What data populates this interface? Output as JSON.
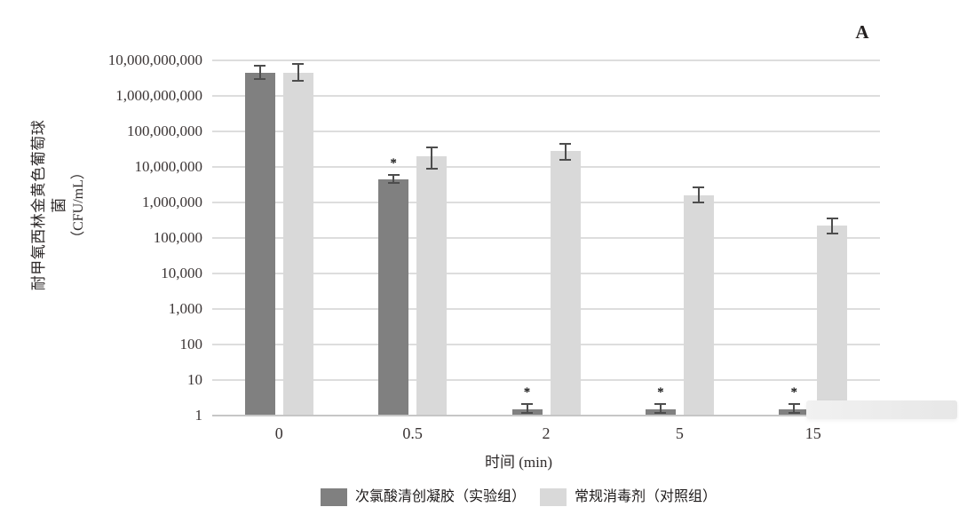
{
  "panel_label": "A",
  "chart_data": {
    "type": "bar",
    "title": "",
    "xlabel": "时间 (min)",
    "ylabel_line1": "耐甲氧西林金黄色葡萄球菌",
    "ylabel_line2": "（CFU/mL）",
    "y_scale": "log10",
    "ylim": [
      1,
      10000000000
    ],
    "grid": true,
    "legend_position": "bottom",
    "y_ticks": [
      {
        "label": "10,000,000,000",
        "value": 10000000000
      },
      {
        "label": "1,000,000,000",
        "value": 1000000000
      },
      {
        "label": "100,000,000",
        "value": 100000000
      },
      {
        "label": "10,000,000",
        "value": 10000000
      },
      {
        "label": "1,000,000",
        "value": 1000000
      },
      {
        "label": "100,000",
        "value": 100000
      },
      {
        "label": "10,000",
        "value": 10000
      },
      {
        "label": "1,000",
        "value": 1000
      },
      {
        "label": "100",
        "value": 100
      },
      {
        "label": "10",
        "value": 10
      },
      {
        "label": "1",
        "value": 1
      }
    ],
    "categories": [
      "0",
      "0.5",
      "2",
      "5",
      "15"
    ],
    "series": [
      {
        "name": "次氯酸清创凝胶（实验组）",
        "key": "experimental",
        "color": "#808080",
        "values": [
          4500000000,
          4500000,
          1.5,
          1.5,
          1.5
        ],
        "err_hi": [
          7000000000,
          6000000,
          2.1,
          2.1,
          2.1
        ],
        "err_lo": [
          3000000000,
          3500000,
          1.2,
          1.2,
          1.2
        ],
        "significance": [
          "",
          "*",
          "*",
          "*",
          "*"
        ]
      },
      {
        "name": "常规消毒剂（对照组）",
        "key": "control",
        "color": "#d9d9d9",
        "values": [
          4500000000,
          20000000,
          28000000,
          1600000,
          220000
        ],
        "err_hi": [
          8000000000,
          35000000,
          45000000,
          2700000,
          350000
        ],
        "err_lo": [
          2600000000,
          9000000,
          16000000,
          1000000,
          130000
        ],
        "significance": [
          "",
          "",
          "",
          "",
          ""
        ]
      }
    ],
    "error_bar_color": "#4d4d4d",
    "gridline_color": "#dddddd",
    "axis_line_color": "#c6c6c6"
  }
}
